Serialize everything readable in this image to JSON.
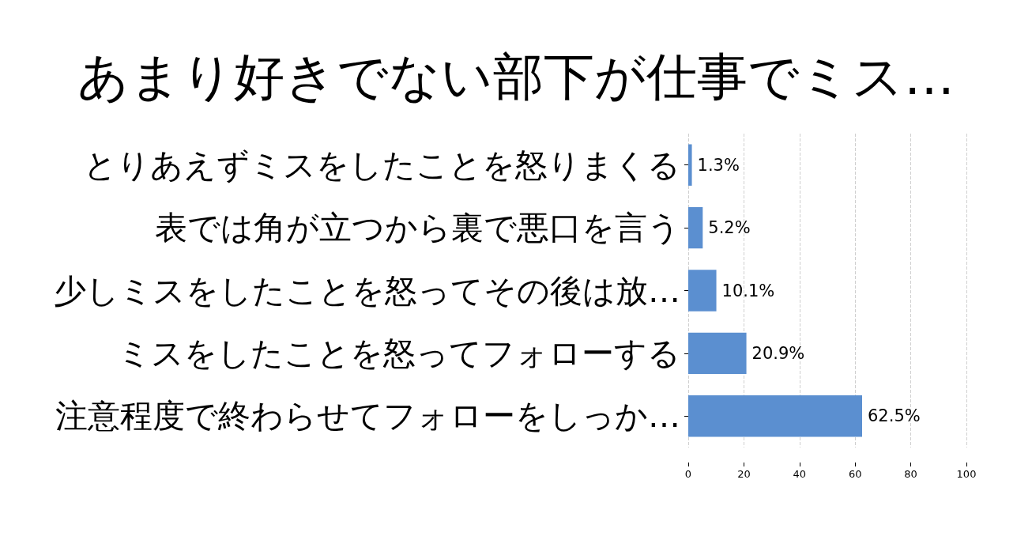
{
  "chart_data": {
    "type": "bar",
    "orientation": "horizontal",
    "title": "あまり好きでない部下が仕事でミス…",
    "categories": [
      "とりあえずミスをしたことを怒りまくる",
      "表では角が立つから裏で悪口を言う",
      "少しミスをしたことを怒ってその後は放…",
      "ミスをしたことを怒ってフォローする",
      "注意程度で終わらせてフォローをしっか…"
    ],
    "values": [
      1.3,
      5.2,
      10.1,
      20.9,
      62.5
    ],
    "color": "#5b8fd0",
    "value_labels": [
      "1.3%",
      "5.2%",
      "10.1%",
      "20.9%",
      "62.5%"
    ],
    "xlim": [
      0,
      100
    ],
    "xticks": [
      0,
      20,
      40,
      60,
      80,
      100
    ],
    "grid": "x"
  }
}
